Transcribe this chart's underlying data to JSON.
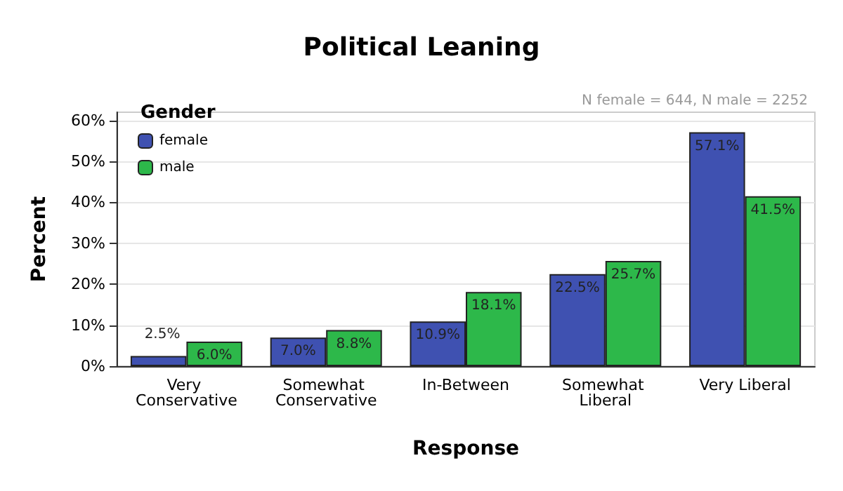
{
  "chart_data": {
    "type": "bar",
    "title": "Political Leaning",
    "xlabel": "Response",
    "ylabel": "Percent",
    "legend_title": "Gender",
    "legend": "top left",
    "grid": "y",
    "annotations": [
      "N female = 644, N male = 2252"
    ],
    "categories": [
      "Very Conservative",
      "Somewhat Conservative",
      "In-Between",
      "Somewhat Liberal",
      "Very Liberal"
    ],
    "series": [
      {
        "name": "female",
        "color": "#3f51b1",
        "values": [
          2.5,
          7.0,
          10.9,
          22.5,
          57.1
        ],
        "value_labels": [
          "2.5%",
          "7.0%",
          "10.9%",
          "22.5%",
          "57.1%"
        ]
      },
      {
        "name": "male",
        "color": "#2db84a",
        "values": [
          6.0,
          8.8,
          18.1,
          25.7,
          41.5
        ],
        "value_labels": [
          "6.0%",
          "8.8%",
          "18.1%",
          "25.7%",
          "41.5%"
        ]
      }
    ],
    "ylim": [
      0,
      62
    ],
    "yticks": [
      {
        "value": 0,
        "label": "0%"
      },
      {
        "value": 10,
        "label": "10%"
      },
      {
        "value": 20,
        "label": "20%"
      },
      {
        "value": 30,
        "label": "30%"
      },
      {
        "value": 40,
        "label": "40%"
      },
      {
        "value": 50,
        "label": "50%"
      },
      {
        "value": 60,
        "label": "60%"
      }
    ]
  }
}
